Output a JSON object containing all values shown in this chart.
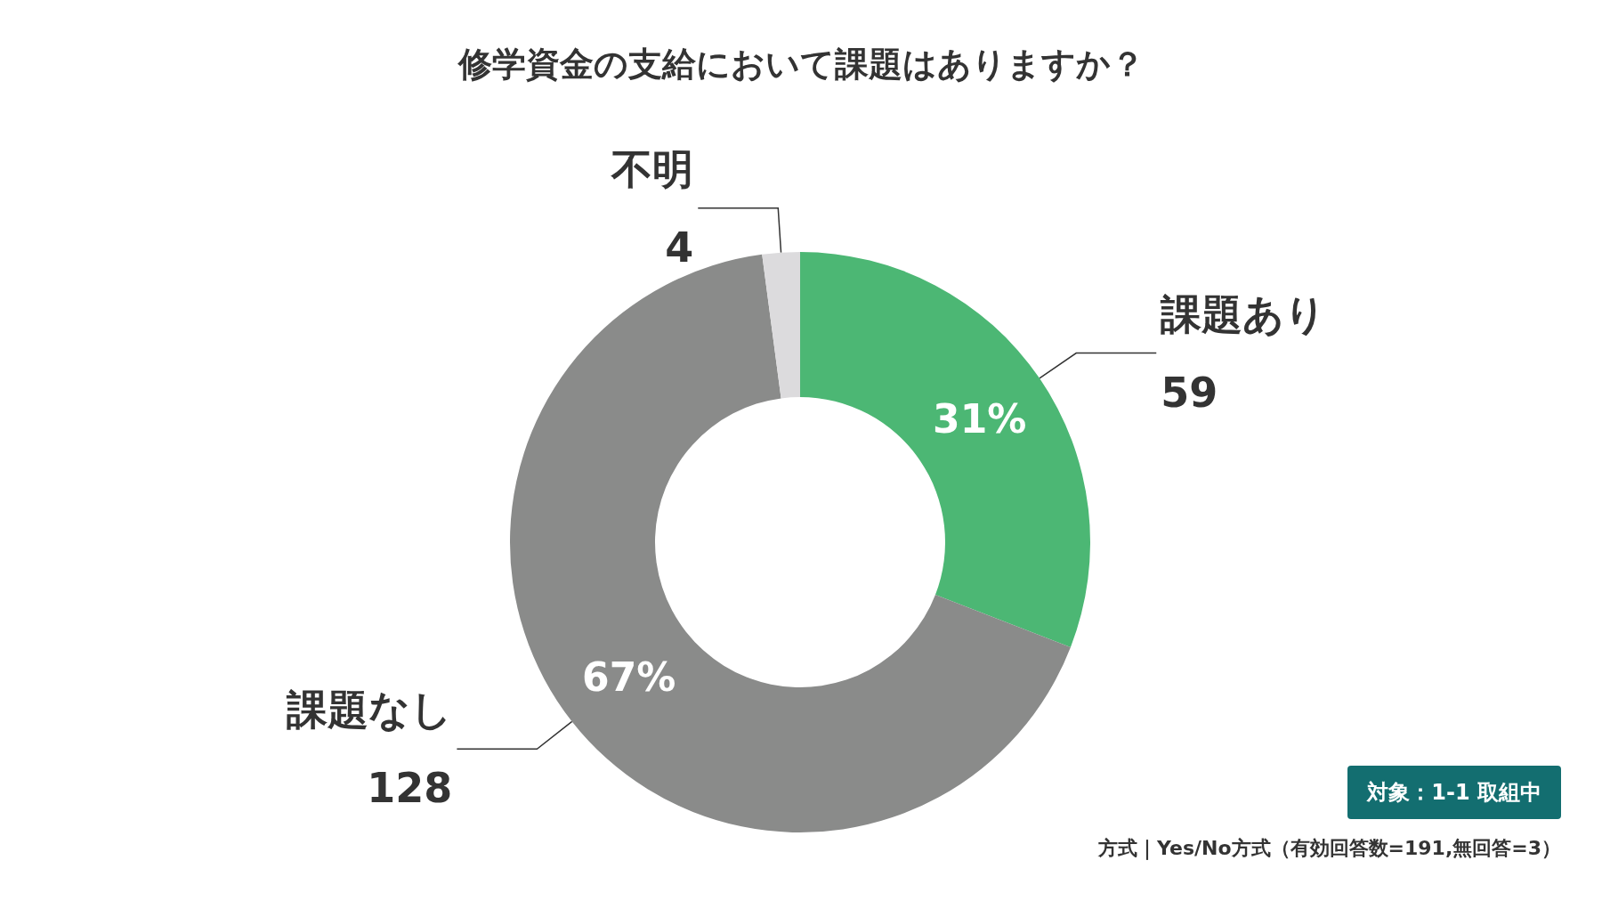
{
  "chart_data": {
    "type": "donut",
    "title": "修学資金の支給において課題はありますか？",
    "categories": [
      "課題あり",
      "課題なし",
      "不明"
    ],
    "values": [
      59,
      128,
      4
    ],
    "colors": [
      "#4cb774",
      "#8a8b8a",
      "#dcdbdd"
    ],
    "data_labels": true,
    "legend": false,
    "annotations": [
      {
        "text": "31%",
        "x": "課題あり"
      },
      {
        "text": "67%",
        "x": "課題なし"
      },
      "対象：1-1 取組中",
      "方式｜Yes/No方式（有効回答数=191,無回答=3）"
    ]
  }
}
